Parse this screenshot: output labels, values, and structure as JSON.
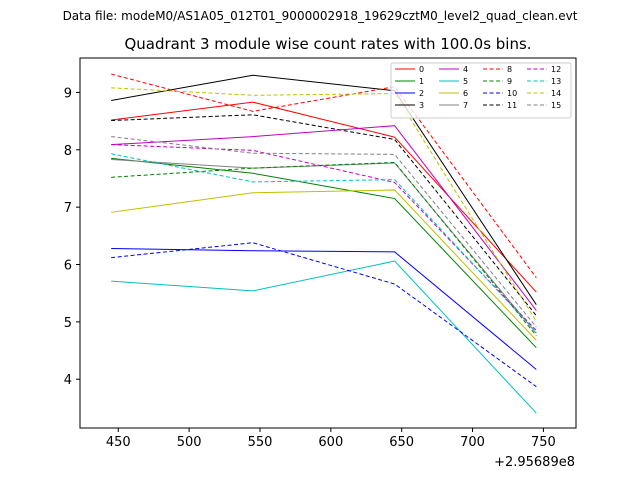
{
  "figure": {
    "suptitle": "Data file: modeM0/AS1A05_012T01_9000002918_19629cztM0_level2_quad_clean.evt"
  },
  "chart_data": {
    "type": "line",
    "title": "Quadrant 3 module wise count rates with 100.0s bins.",
    "xlabel": "",
    "ylabel": "",
    "x_offset_label": "+2.95689e8",
    "x": [
      445,
      545,
      645,
      745
    ],
    "xlim": [
      423,
      773
    ],
    "ylim": [
      3.15,
      9.6
    ],
    "xticks": [
      450,
      500,
      550,
      600,
      650,
      700,
      750
    ],
    "yticks": [
      4,
      5,
      6,
      7,
      8,
      9
    ],
    "legend_position": "top-right",
    "series": [
      {
        "name": "0",
        "color": "#ff0000",
        "style": "solid",
        "values": [
          8.52,
          8.83,
          8.22,
          5.52
        ]
      },
      {
        "name": "1",
        "color": "#008000",
        "style": "solid",
        "values": [
          7.85,
          7.59,
          7.15,
          4.55
        ]
      },
      {
        "name": "2",
        "color": "#0000ff",
        "style": "solid",
        "values": [
          6.28,
          6.24,
          6.22,
          4.17
        ]
      },
      {
        "name": "3",
        "color": "#000000",
        "style": "solid",
        "values": [
          8.86,
          9.3,
          9.03,
          5.3
        ]
      },
      {
        "name": "4",
        "color": "#c000c0",
        "style": "solid",
        "values": [
          8.09,
          8.23,
          8.42,
          5.2
        ]
      },
      {
        "name": "5",
        "color": "#00c0c0",
        "style": "solid",
        "values": [
          5.71,
          5.54,
          6.06,
          3.41
        ]
      },
      {
        "name": "6",
        "color": "#c0c000",
        "style": "solid",
        "values": [
          6.91,
          7.25,
          7.3,
          4.68
        ]
      },
      {
        "name": "7",
        "color": "#808080",
        "style": "solid",
        "values": [
          7.83,
          7.68,
          7.77,
          4.8
        ]
      },
      {
        "name": "8",
        "color": "#ff0000",
        "style": "dashed",
        "values": [
          9.32,
          8.67,
          9.1,
          5.77
        ]
      },
      {
        "name": "9",
        "color": "#008000",
        "style": "dashed",
        "values": [
          7.52,
          7.68,
          7.78,
          4.76
        ]
      },
      {
        "name": "10",
        "color": "#0000ff",
        "style": "dashed",
        "values": [
          6.12,
          6.38,
          5.66,
          3.87
        ]
      },
      {
        "name": "11",
        "color": "#000000",
        "style": "dashed",
        "values": [
          8.51,
          8.61,
          8.18,
          5.11
        ]
      },
      {
        "name": "12",
        "color": "#c000c0",
        "style": "dashed",
        "values": [
          8.09,
          7.99,
          7.43,
          4.85
        ]
      },
      {
        "name": "13",
        "color": "#00c0c0",
        "style": "dashed",
        "values": [
          7.93,
          7.44,
          7.48,
          4.82
        ]
      },
      {
        "name": "14",
        "color": "#c0c000",
        "style": "dashed",
        "values": [
          9.08,
          8.95,
          8.98,
          5.01
        ]
      },
      {
        "name": "15",
        "color": "#808080",
        "style": "dashed",
        "values": [
          8.23,
          7.94,
          7.92,
          4.91
        ]
      }
    ]
  }
}
